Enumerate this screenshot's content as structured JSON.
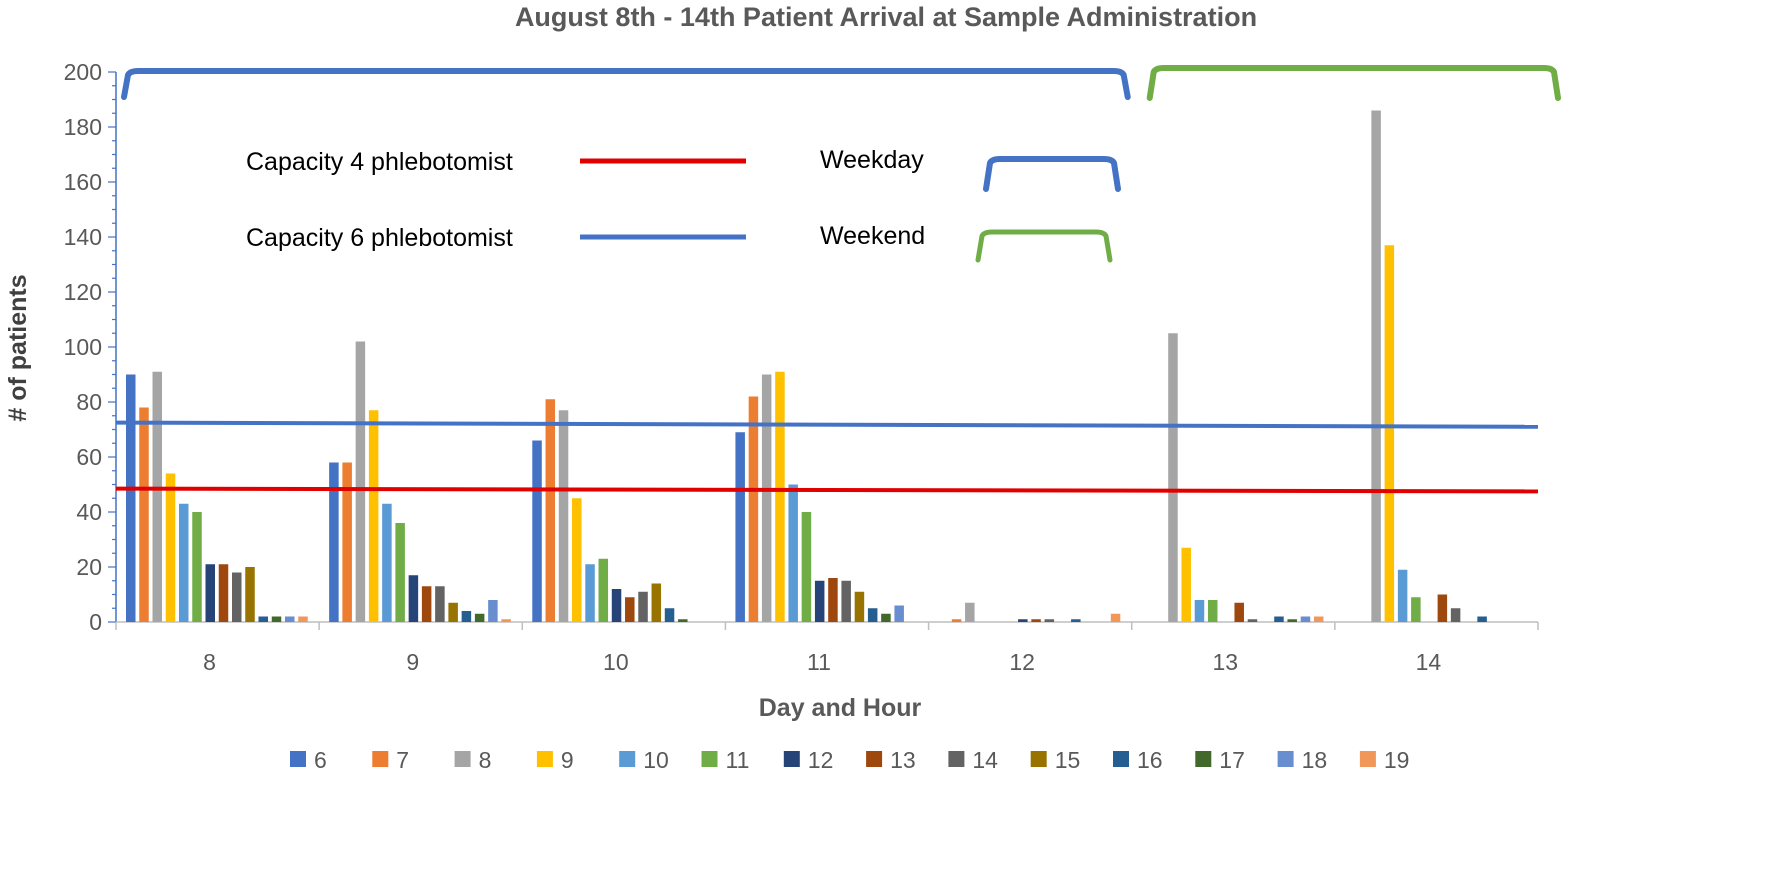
{
  "chart_data": {
    "type": "bar",
    "title": "August 8th - 14th Patient Arrival at Sample Administration",
    "xlabel": "Day and Hour",
    "ylabel": "# of patients",
    "ylim": [
      0,
      200
    ],
    "yticks": [
      "0",
      "20",
      "40",
      "60",
      "80",
      "100",
      "120",
      "140",
      "160",
      "180",
      "200"
    ],
    "categories": [
      "8",
      "9",
      "10",
      "11",
      "12",
      "13",
      "14"
    ],
    "legend_position": "bottom",
    "series": [
      {
        "name": "6",
        "color": "#4472C4",
        "values": [
          90,
          58,
          66,
          69,
          0,
          0,
          0
        ]
      },
      {
        "name": "7",
        "color": "#ED7D31",
        "values": [
          78,
          58,
          81,
          82,
          1,
          0,
          0
        ]
      },
      {
        "name": "8",
        "color": "#A5A5A5",
        "values": [
          91,
          102,
          77,
          90,
          7,
          105,
          186
        ]
      },
      {
        "name": "9",
        "color": "#FFC000",
        "values": [
          54,
          77,
          45,
          91,
          0,
          27,
          137
        ]
      },
      {
        "name": "10",
        "color": "#5B9BD5",
        "values": [
          43,
          43,
          21,
          50,
          0,
          8,
          19
        ]
      },
      {
        "name": "11",
        "color": "#70AD47",
        "values": [
          40,
          36,
          23,
          40,
          0,
          8,
          9
        ]
      },
      {
        "name": "12",
        "color": "#264478",
        "values": [
          21,
          17,
          12,
          15,
          1,
          0,
          0
        ]
      },
      {
        "name": "13",
        "color": "#9E480E",
        "values": [
          21,
          13,
          9,
          16,
          1,
          7,
          10
        ]
      },
      {
        "name": "14",
        "color": "#636363",
        "values": [
          18,
          13,
          11,
          15,
          1,
          1,
          5
        ]
      },
      {
        "name": "15",
        "color": "#997300",
        "values": [
          20,
          7,
          14,
          11,
          0,
          0,
          0
        ]
      },
      {
        "name": "16",
        "color": "#255E91",
        "values": [
          2,
          4,
          5,
          5,
          1,
          2,
          2
        ]
      },
      {
        "name": "17",
        "color": "#43682B",
        "values": [
          2,
          3,
          1,
          3,
          0,
          1,
          0
        ]
      },
      {
        "name": "18",
        "color": "#698ED0",
        "values": [
          2,
          8,
          0,
          6,
          0,
          2,
          0
        ]
      },
      {
        "name": "19",
        "color": "#F1975A",
        "values": [
          2,
          1,
          0,
          0,
          3,
          2,
          0
        ]
      }
    ],
    "reference_lines": [
      {
        "name": "Capacity 4 phlebotomist",
        "color": "#E00000",
        "y_start": 48.5,
        "y_end": 47.5
      },
      {
        "name": "Capacity 6 phlebotomist",
        "color": "#4472C4",
        "y_start": 72.5,
        "y_end": 71
      }
    ],
    "brackets": [
      {
        "name": "Weekday",
        "color": "#4472C4",
        "from_category": "8",
        "to_category": "12"
      },
      {
        "name": "Weekend",
        "color": "#70AD47",
        "from_category": "13",
        "to_category": "14"
      }
    ]
  }
}
